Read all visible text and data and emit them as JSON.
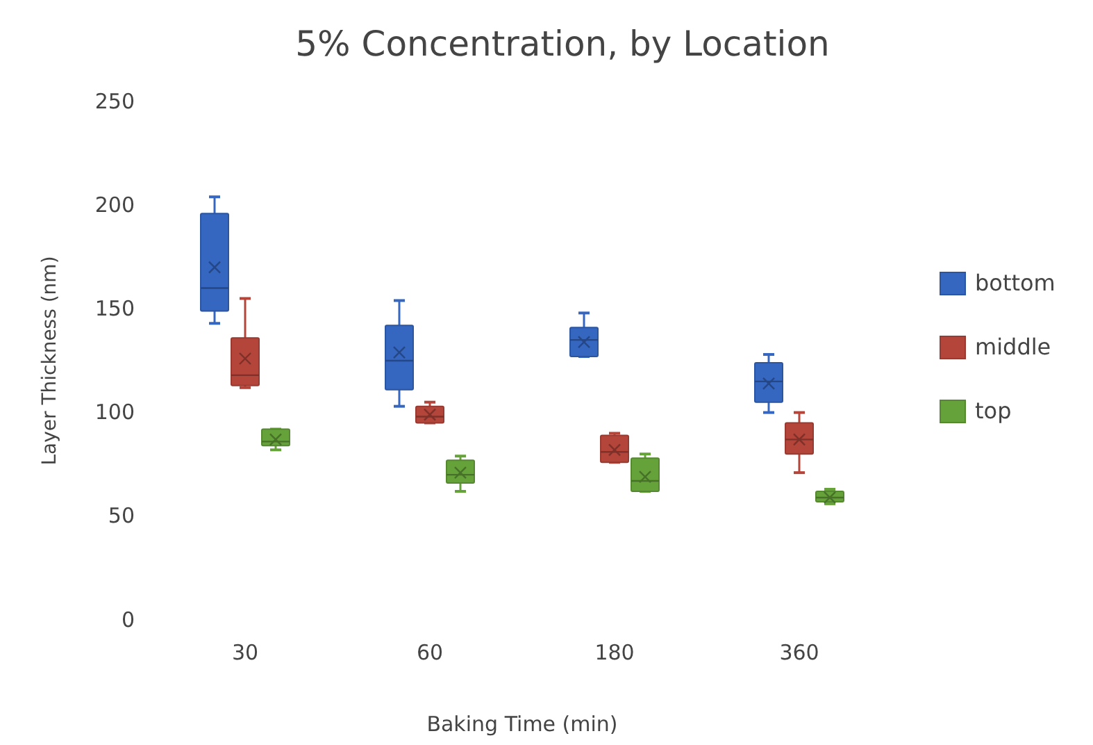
{
  "chart_data": {
    "type": "box",
    "title": "5% Concentration, by Location",
    "xlabel": "Baking Time (min)",
    "ylabel": "Layer Thickness (nm)",
    "categories": [
      "30",
      "60",
      "180",
      "360"
    ],
    "ylim": [
      0,
      250
    ],
    "yticks": [
      0,
      50,
      100,
      150,
      200,
      250
    ],
    "grid": false,
    "legend": "right",
    "series": [
      {
        "name": "bottom",
        "color": "#3566c0",
        "boxes": [
          {
            "low": 143,
            "q1": 149,
            "median": 160,
            "q3": 196,
            "high": 204,
            "mean": 170
          },
          {
            "low": 103,
            "q1": 111,
            "median": 125,
            "q3": 142,
            "high": 154,
            "mean": 129
          },
          {
            "low": 127,
            "q1": 127,
            "median": 135,
            "q3": 141,
            "high": 148,
            "mean": 134
          },
          {
            "low": 100,
            "q1": 105,
            "median": 115,
            "q3": 124,
            "high": 128,
            "mean": 114
          }
        ]
      },
      {
        "name": "middle",
        "color": "#b4453a",
        "boxes": [
          {
            "low": 112,
            "q1": 113,
            "median": 118,
            "q3": 136,
            "high": 155,
            "mean": 126
          },
          {
            "low": 95,
            "q1": 95,
            "median": 98,
            "q3": 103,
            "high": 105,
            "mean": 99
          },
          {
            "low": 76,
            "q1": 76,
            "median": 81,
            "q3": 89,
            "high": 90,
            "mean": 82
          },
          {
            "low": 71,
            "q1": 80,
            "median": 87,
            "q3": 95,
            "high": 100,
            "mean": 87
          }
        ]
      },
      {
        "name": "top",
        "color": "#66a23a",
        "boxes": [
          {
            "low": 82,
            "q1": 84,
            "median": 86,
            "q3": 92,
            "high": 92,
            "mean": 87
          },
          {
            "low": 62,
            "q1": 66,
            "median": 70,
            "q3": 77,
            "high": 79,
            "mean": 71
          },
          {
            "low": 62,
            "q1": 62,
            "median": 67,
            "q3": 78,
            "high": 80,
            "mean": 69
          },
          {
            "low": 56,
            "q1": 57,
            "median": 59,
            "q3": 62,
            "high": 63,
            "mean": 59
          }
        ]
      }
    ]
  }
}
